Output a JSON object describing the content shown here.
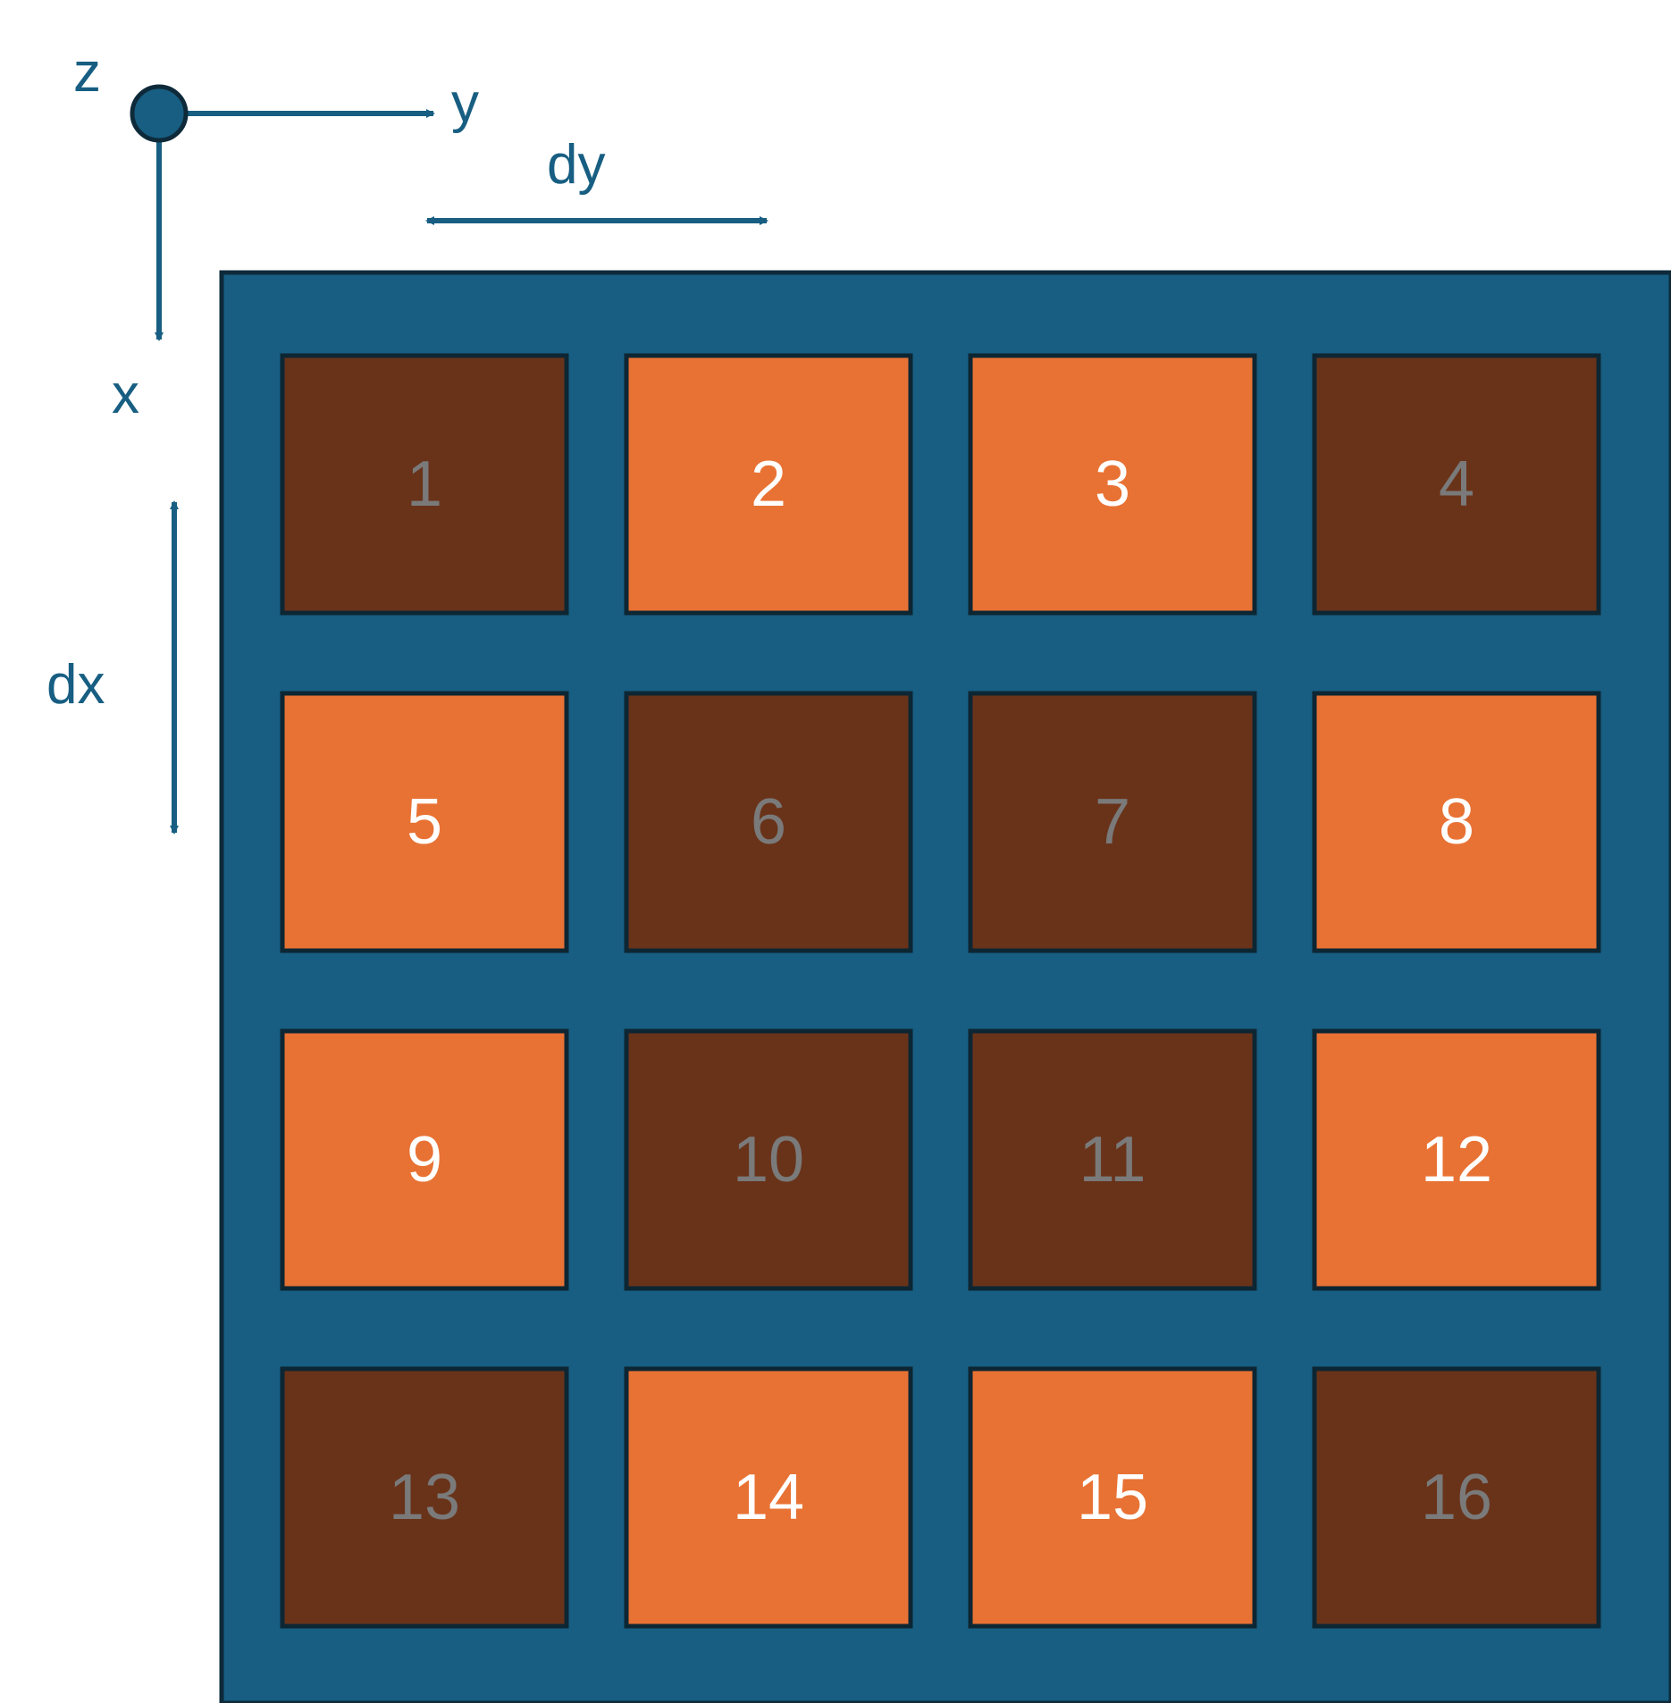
{
  "colors": {
    "axis": "#175e82",
    "board_fill": "#175e82",
    "board_stroke": "#0e2a3a",
    "cell_light": "#e87234",
    "cell_dark": "#69331a",
    "cell_stroke": "#0d2633",
    "label_on_light": "#ffffff",
    "label_on_dark": "#7a7a7a"
  },
  "axes": {
    "z_label": "z",
    "y_label": "y",
    "x_label": "x",
    "dy_label": "dy",
    "dx_label": "dx"
  },
  "grid": {
    "rows": 4,
    "cols": 4,
    "cells": [
      {
        "label": "1",
        "tone": "dark"
      },
      {
        "label": "2",
        "tone": "light"
      },
      {
        "label": "3",
        "tone": "light"
      },
      {
        "label": "4",
        "tone": "dark"
      },
      {
        "label": "5",
        "tone": "light"
      },
      {
        "label": "6",
        "tone": "dark"
      },
      {
        "label": "7",
        "tone": "dark"
      },
      {
        "label": "8",
        "tone": "light"
      },
      {
        "label": "9",
        "tone": "light"
      },
      {
        "label": "10",
        "tone": "dark"
      },
      {
        "label": "11",
        "tone": "dark"
      },
      {
        "label": "12",
        "tone": "light"
      },
      {
        "label": "13",
        "tone": "dark"
      },
      {
        "label": "14",
        "tone": "light"
      },
      {
        "label": "15",
        "tone": "light"
      },
      {
        "label": "16",
        "tone": "dark"
      }
    ]
  }
}
